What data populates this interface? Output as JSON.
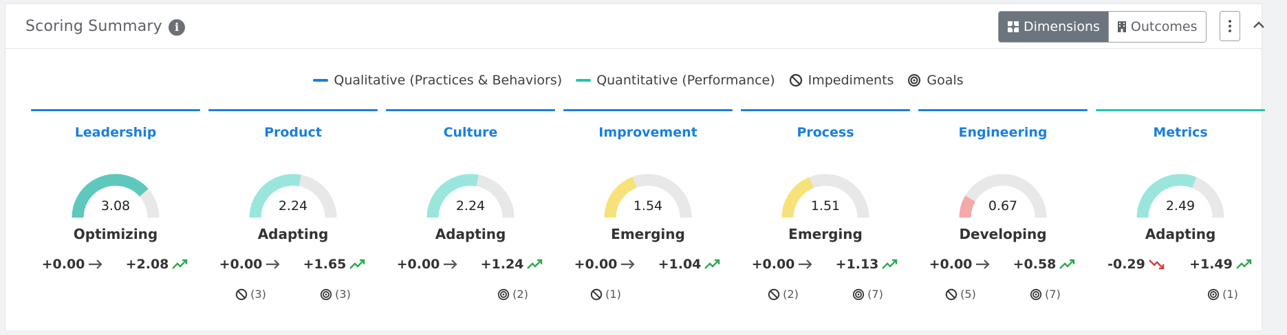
{
  "header": {
    "title": "Scoring Summary",
    "info_icon": "info-icon",
    "dimensions_label": "Dimensions",
    "outcomes_label": "Outcomes"
  },
  "legend": {
    "qualitative": "Qualitative (Practices & Behaviors)",
    "quantitative": "Quantitative (Performance)",
    "impediments": "Impediments",
    "goals": "Goals",
    "qualitative_color": "#1a7fe0",
    "quantitative_color": "#20c5b5"
  },
  "dimensions": [
    {
      "name": "Leadership",
      "score": "3.08",
      "fraction": 0.77,
      "color": "#5ec8bc",
      "bar": "#1a7fe0",
      "level": "Optimizing",
      "left": "+0.00",
      "left_trend": "flat",
      "right": "+2.08",
      "right_trend": "up",
      "impediments": "",
      "goals": ""
    },
    {
      "name": "Product",
      "score": "2.24",
      "fraction": 0.56,
      "color": "#9ae6dd",
      "bar": "#1a7fe0",
      "level": "Adapting",
      "left": "+0.00",
      "left_trend": "flat",
      "right": "+1.65",
      "right_trend": "up",
      "impediments": "(3)",
      "goals": "(3)"
    },
    {
      "name": "Culture",
      "score": "2.24",
      "fraction": 0.56,
      "color": "#9ae6dd",
      "bar": "#1a7fe0",
      "level": "Adapting",
      "left": "+0.00",
      "left_trend": "flat",
      "right": "+1.24",
      "right_trend": "up",
      "impediments": "",
      "goals": "(2)"
    },
    {
      "name": "Improvement",
      "score": "1.54",
      "fraction": 0.385,
      "color": "#f7e27a",
      "bar": "#1a7fe0",
      "level": "Emerging",
      "left": "+0.00",
      "left_trend": "flat",
      "right": "+1.04",
      "right_trend": "up",
      "impediments": "(1)",
      "goals": ""
    },
    {
      "name": "Process",
      "score": "1.51",
      "fraction": 0.378,
      "color": "#f7e27a",
      "bar": "#1a7fe0",
      "level": "Emerging",
      "left": "+0.00",
      "left_trend": "flat",
      "right": "+1.13",
      "right_trend": "up",
      "impediments": "(2)",
      "goals": "(7)"
    },
    {
      "name": "Engineering",
      "score": "0.67",
      "fraction": 0.168,
      "color": "#f6a9a9",
      "bar": "#1a7fe0",
      "level": "Developing",
      "left": "+0.00",
      "left_trend": "flat",
      "right": "+0.58",
      "right_trend": "up",
      "impediments": "(5)",
      "goals": "(7)"
    },
    {
      "name": "Metrics",
      "score": "2.49",
      "fraction": 0.62,
      "color": "#9ae6dd",
      "bar": "#20c5b5",
      "level": "Adapting",
      "left": "-0.29",
      "left_trend": "down",
      "right": "+1.49",
      "right_trend": "up",
      "impediments": "",
      "goals": "(1)"
    }
  ]
}
